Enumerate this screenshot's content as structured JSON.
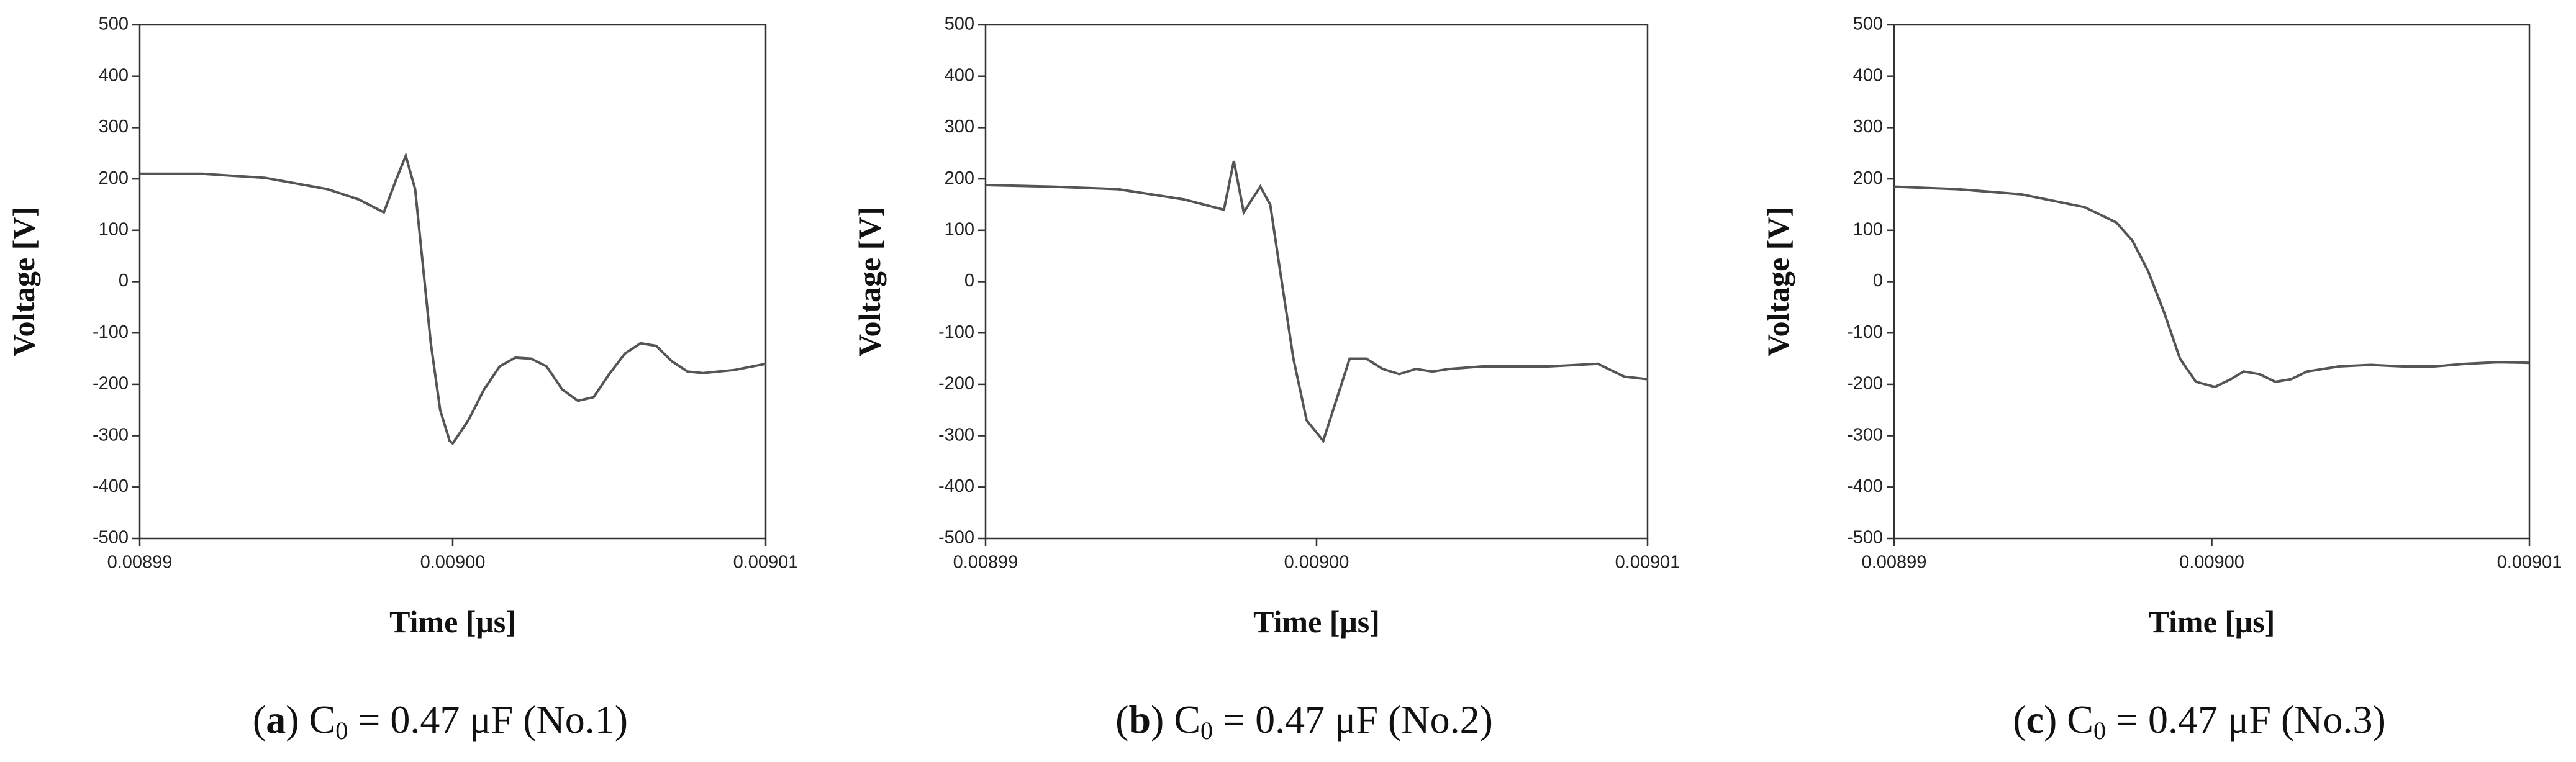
{
  "chart_data": [
    {
      "type": "line",
      "xlabel": "Time [μs]",
      "ylabel": "Voltage [V]",
      "color": "#555555",
      "caption": {
        "tag": "a",
        "main": "C",
        "sub": "0",
        "tail": " = 0.47 μF (No.1)"
      },
      "xlim": [
        0.00899,
        0.00901
      ],
      "xticks": [
        0.00899,
        {
          "value": 0.009,
          "label": "0.00900"
        },
        0.00901
      ],
      "ylim": [
        -500,
        500
      ],
      "yticks": [
        -500,
        -400,
        -300,
        -200,
        -100,
        0,
        100,
        200,
        300,
        400,
        500
      ],
      "x": [
        0.00899,
        0.008992,
        0.008994,
        0.008996,
        0.008997,
        0.0089978,
        0.0089982,
        0.0089985,
        0.0089988,
        0.008999,
        0.0089993,
        0.0089996,
        0.0089999,
        0.009,
        0.0090005,
        0.009001,
        0.0090015,
        0.009002,
        0.0090025,
        0.009003,
        0.0090035,
        0.009004,
        0.0090045,
        0.009005,
        0.0090055,
        0.009006,
        0.0090065,
        0.009007,
        0.0090075,
        0.009008,
        0.009009,
        0.00901
      ],
      "values": [
        210,
        210,
        202,
        180,
        160,
        135,
        200,
        245,
        180,
        60,
        -120,
        -250,
        -310,
        -315,
        -270,
        -210,
        -165,
        -148,
        -150,
        -165,
        -210,
        -232,
        -225,
        -180,
        -140,
        -120,
        -125,
        -155,
        -175,
        -178,
        -172,
        -160
      ]
    },
    {
      "type": "line",
      "xlabel": "Time [μs]",
      "ylabel": "Voltage [V]",
      "color": "#555555",
      "caption": {
        "tag": "b",
        "main": "C",
        "sub": "0",
        "tail": " = 0.47 μF (No.2)"
      },
      "xlim": [
        0.00899,
        0.00901
      ],
      "xticks": [
        0.00899,
        {
          "value": 0.009,
          "label": "0.00900"
        },
        0.00901
      ],
      "ylim": [
        -500,
        500
      ],
      "yticks": [
        -500,
        -400,
        -300,
        -200,
        -100,
        0,
        100,
        200,
        300,
        400,
        500
      ],
      "x": [
        0.00899,
        0.008992,
        0.008994,
        0.008996,
        0.0089972,
        0.0089975,
        0.0089978,
        0.0089983,
        0.0089986,
        0.0089989,
        0.0089993,
        0.0089997,
        0.0090002,
        0.0090006,
        0.009001,
        0.0090015,
        0.009002,
        0.0090025,
        0.009003,
        0.0090035,
        0.009004,
        0.009005,
        0.009006,
        0.009007,
        0.0090085,
        0.0090093,
        0.00901
      ],
      "values": [
        188,
        185,
        180,
        160,
        140,
        235,
        135,
        185,
        150,
        20,
        -150,
        -270,
        -310,
        -230,
        -150,
        -150,
        -170,
        -180,
        -170,
        -175,
        -170,
        -165,
        -165,
        -165,
        -160,
        -185,
        -190
      ]
    },
    {
      "type": "line",
      "xlabel": "Time [μs]",
      "ylabel": "Voltage [V]",
      "color": "#555555",
      "caption": {
        "tag": "c",
        "main": "C",
        "sub": "0",
        "tail": " = 0.47 μF (No.3)"
      },
      "xlim": [
        0.00899,
        0.00901
      ],
      "xticks": [
        0.00899,
        {
          "value": 0.009,
          "label": "0.00900"
        },
        0.00901
      ],
      "ylim": [
        -500,
        500
      ],
      "yticks": [
        -500,
        -400,
        -300,
        -200,
        -100,
        0,
        100,
        200,
        300,
        400,
        500
      ],
      "x": [
        0.00899,
        0.008992,
        0.008994,
        0.008996,
        0.008997,
        0.0089975,
        0.008998,
        0.0089985,
        0.008999,
        0.0089995,
        0.0090001,
        0.0090006,
        0.009001,
        0.0090015,
        0.009002,
        0.0090025,
        0.009003,
        0.009004,
        0.009005,
        0.009006,
        0.009007,
        0.009008,
        0.009009,
        0.00901
      ],
      "values": [
        185,
        180,
        170,
        145,
        115,
        80,
        20,
        -60,
        -150,
        -195,
        -205,
        -190,
        -175,
        -180,
        -195,
        -190,
        -175,
        -165,
        -162,
        -165,
        -165,
        -160,
        -157,
        -158
      ]
    }
  ]
}
